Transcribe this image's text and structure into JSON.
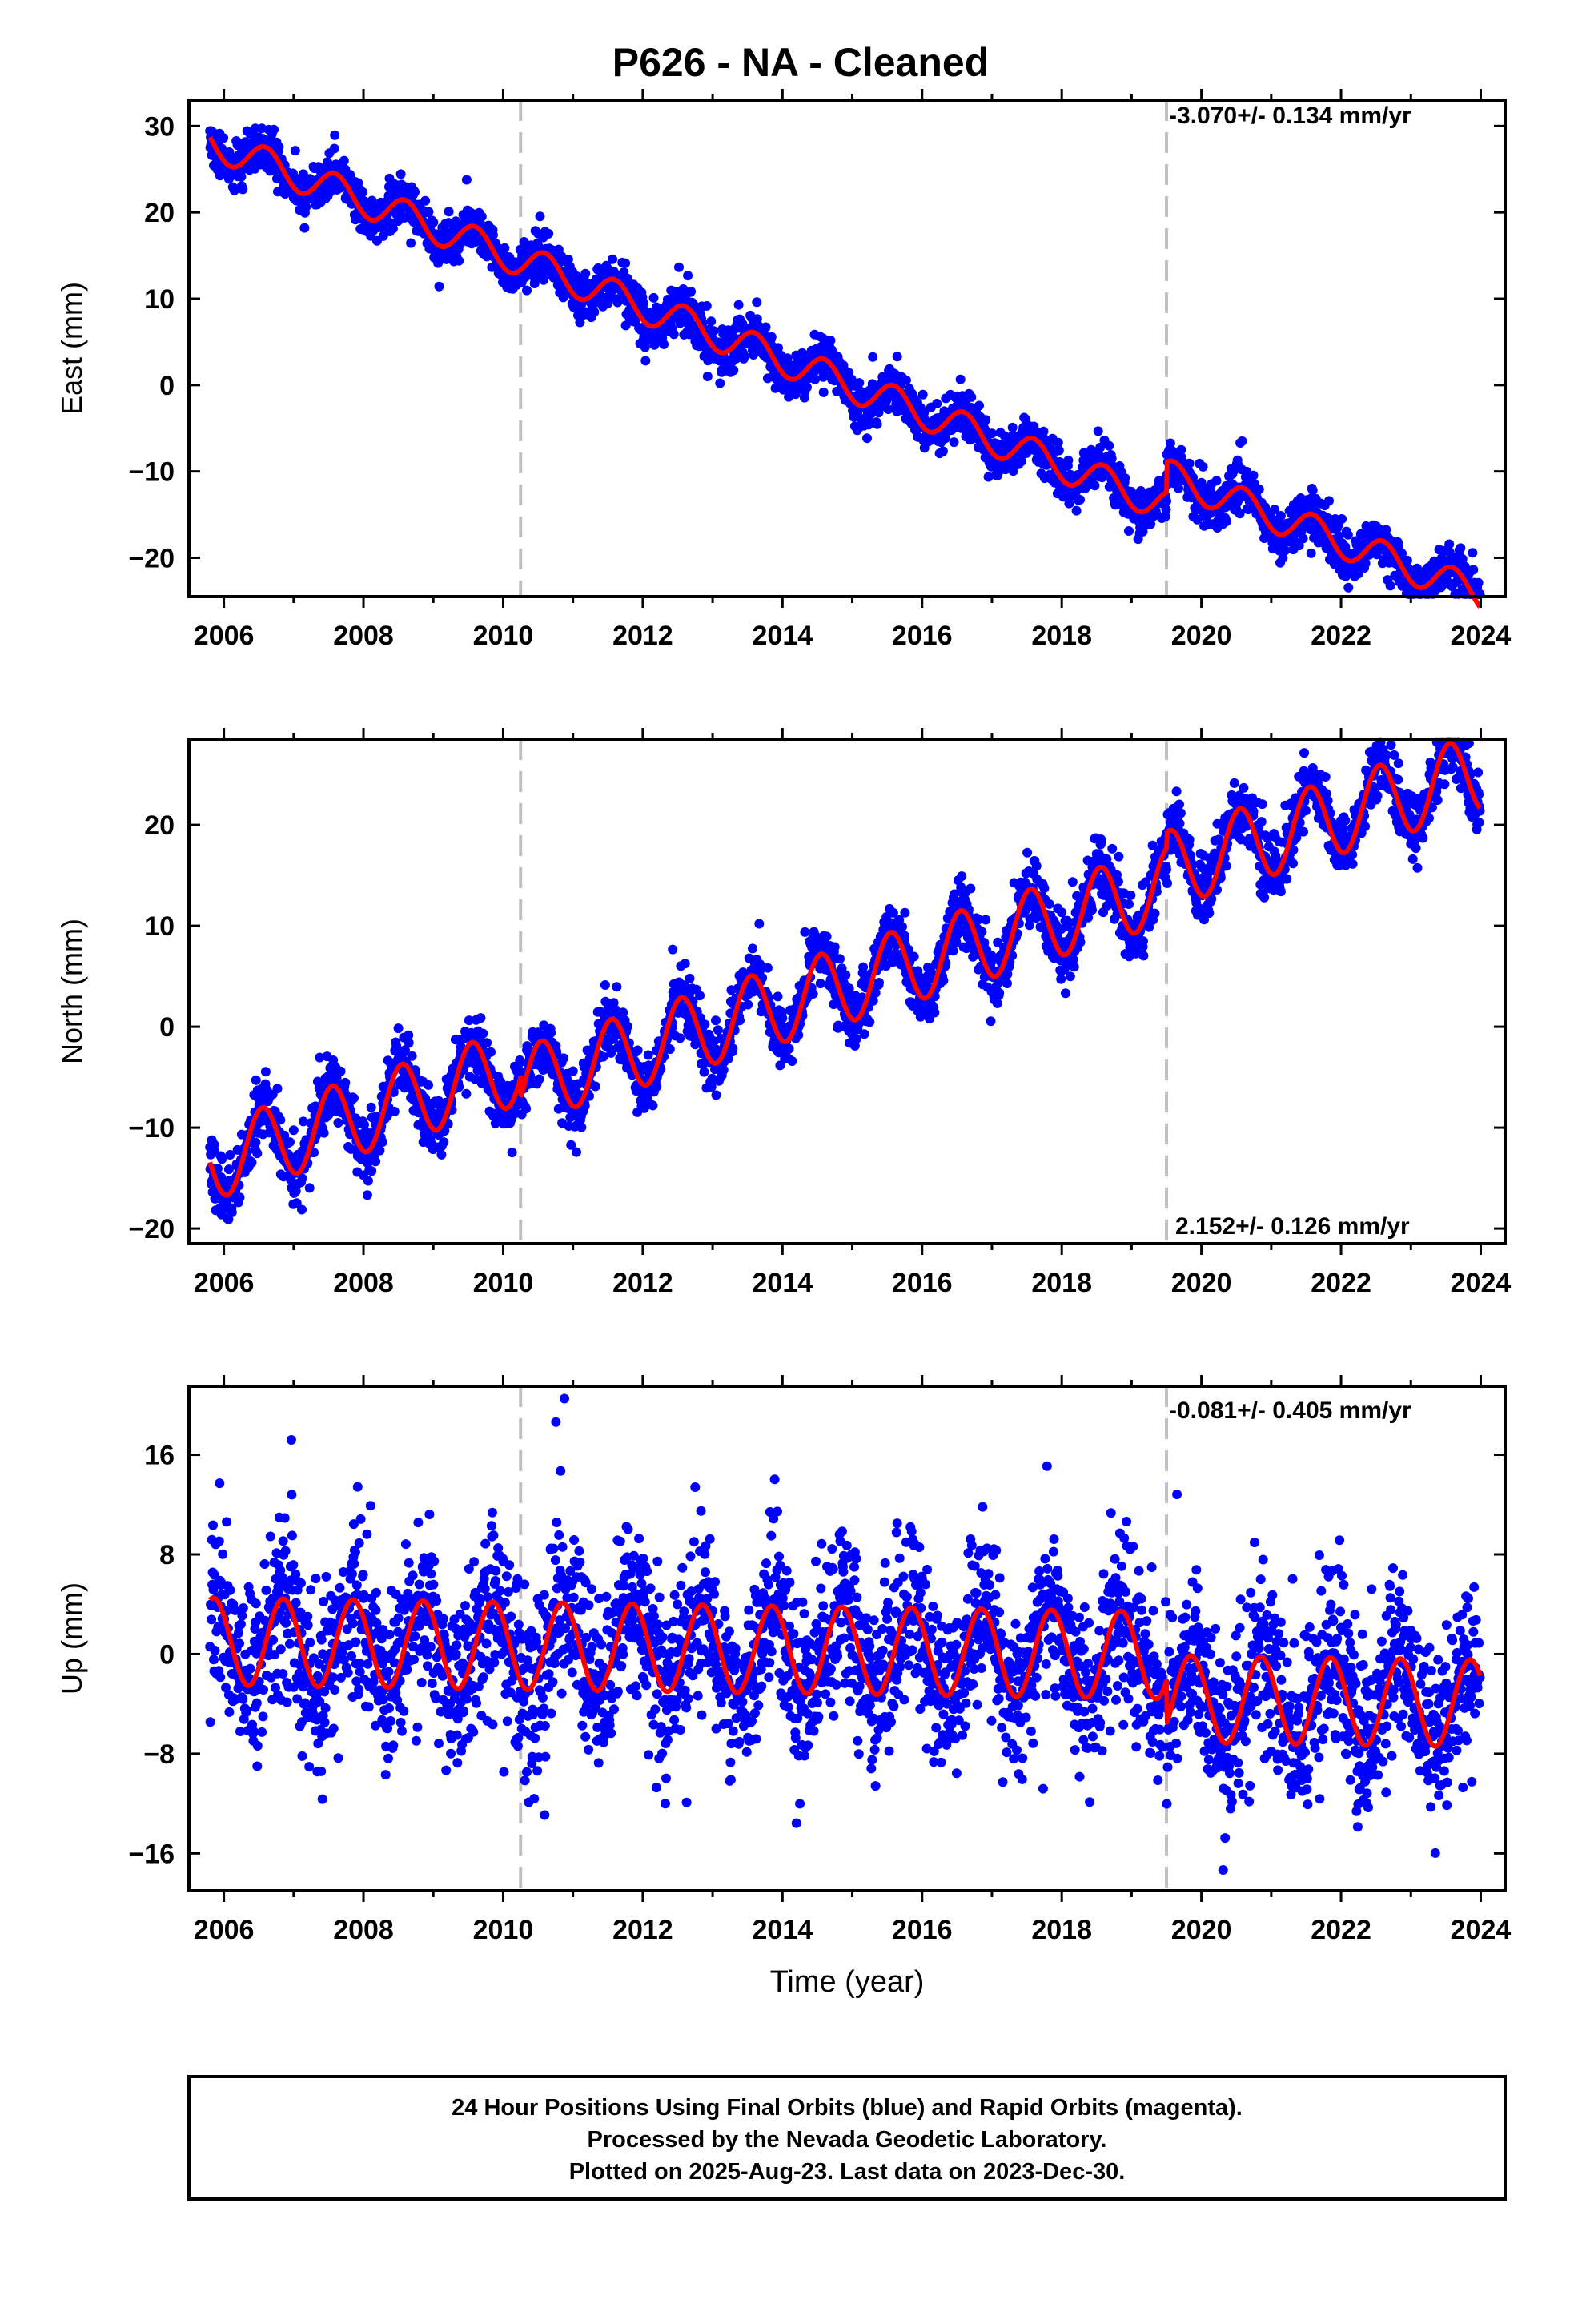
{
  "chart_data": {
    "type": "scatter",
    "title": "P626  - NA - Cleaned",
    "xlabel": "Time (year)",
    "xlim": [
      2005.5,
      2024.35
    ],
    "x_ticks": [
      2006,
      2008,
      2010,
      2012,
      2014,
      2016,
      2018,
      2020,
      2022,
      2024
    ],
    "x_tick_labels": [
      "2006",
      "2008",
      "2010",
      "2012",
      "2014",
      "2016",
      "2018",
      "2020",
      "2022",
      "2024"
    ],
    "vertical_markers": [
      2010.25,
      2019.5
    ],
    "colors": {
      "data_points": "#0000ff",
      "model_line": "#ff0000",
      "markers": "#c0c0c0",
      "frame": "#000000"
    },
    "data_span": [
      2005.8,
      2023.99
    ],
    "panels": [
      {
        "name": "east",
        "ylabel": "East (mm)",
        "ylim": [
          -24.5,
          33
        ],
        "y_ticks": [
          -20,
          -10,
          0,
          10,
          20,
          30
        ],
        "y_tick_labels": [
          "−20",
          "−10",
          "0",
          "10",
          "20",
          "30"
        ],
        "rate": "-3.070+/- 0.134 mm/yr",
        "rate_position": "top-right",
        "model": {
          "slope": -3.07,
          "anchor_year": 2006.0,
          "anchor_value": 27.5,
          "annual_amp": 1.9,
          "annual_peak": 2006.6,
          "offsets": [
            {
              "year": 2019.5,
              "jump": 3.5
            }
          ]
        },
        "scatter_sd": 1.3,
        "outlier_range": [
          -3,
          5
        ]
      },
      {
        "name": "north",
        "ylabel": "North (mm)",
        "ylim": [
          -21.5,
          28.5
        ],
        "y_ticks": [
          -20,
          -10,
          0,
          10,
          20
        ],
        "y_tick_labels": [
          "−20",
          "−10",
          "0",
          "10",
          "20"
        ],
        "rate": "2.152+/- 0.126 mm/yr",
        "rate_position": "bottom-right",
        "model": {
          "slope": 2.152,
          "anchor_year": 2006.0,
          "anchor_value": -13.0,
          "annual_amp": 3.8,
          "annual_peak": 2006.55,
          "offsets": [
            {
              "year": 2010.25,
              "jump": -2.0
            },
            {
              "year": 2019.5,
              "jump": 1.5
            }
          ]
        },
        "scatter_sd": 1.5,
        "outlier_range": [
          -4,
          5
        ]
      },
      {
        "name": "up",
        "ylabel": "Up (mm)",
        "ylim": [
          -19,
          21.5
        ],
        "y_ticks": [
          -16,
          -8,
          0,
          8,
          16
        ],
        "y_tick_labels": [
          "−16",
          "−8",
          "0",
          "8",
          "16"
        ],
        "rate": "-0.081+/- 0.405 mm/yr",
        "rate_position": "top-right",
        "model": {
          "slope": -0.081,
          "anchor_year": 2006.0,
          "anchor_value": 1.0,
          "annual_amp": 3.5,
          "annual_peak": 2006.85,
          "offsets": [
            {
              "year": 2019.5,
              "jump": -3.5
            }
          ]
        },
        "scatter_sd": 3.4,
        "outlier_range": [
          -8,
          12
        ]
      }
    ]
  },
  "footer": {
    "line1": "24 Hour Positions Using Final Orbits (blue) and Rapid Orbits (magenta).",
    "line2": "Processed by the Nevada Geodetic Laboratory.",
    "line3": "Plotted on 2025-Aug-23. Last data on 2023-Dec-30."
  }
}
